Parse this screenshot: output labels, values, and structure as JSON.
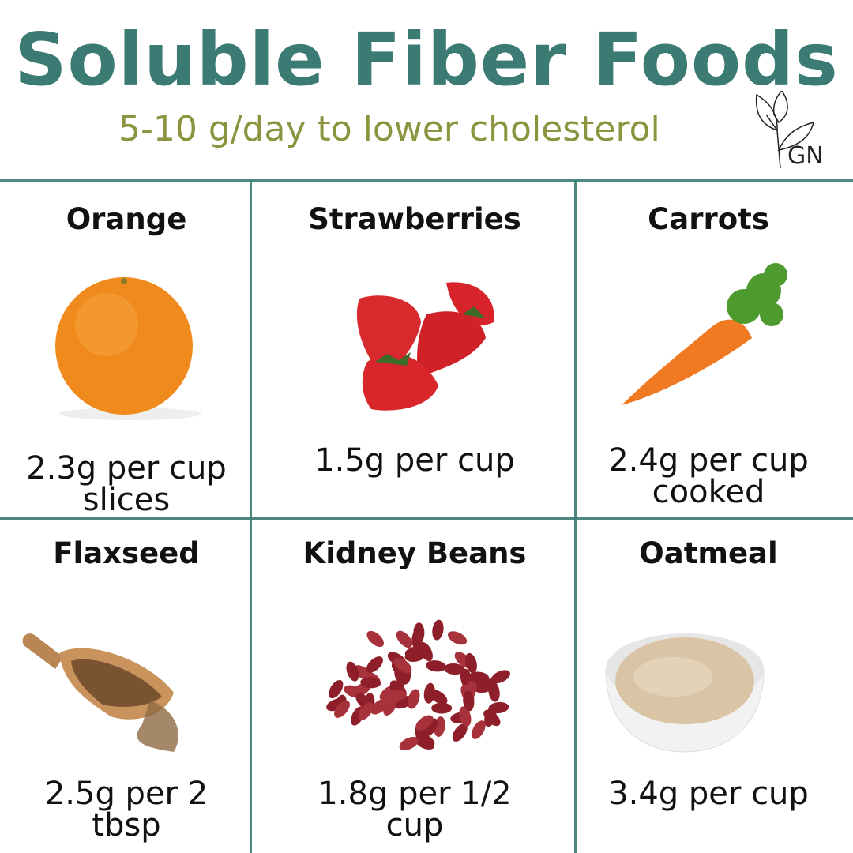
{
  "header": {
    "title": "Soluble Fiber Foods",
    "subtitle": "5-10 g/day to lower cholesterol",
    "logo_text": "GN"
  },
  "colors": {
    "title": "#3b7b74",
    "subtitle": "#8c9440",
    "grid": "#3b7b74"
  },
  "foods": [
    {
      "name": "Orange",
      "amount": "2.3g per cup slices",
      "icon": "orange-image"
    },
    {
      "name": "Strawberries",
      "amount": "1.5g per cup",
      "icon": "strawberries-image"
    },
    {
      "name": "Carrots",
      "amount": "2.4g per cup cooked",
      "icon": "carrot-image"
    },
    {
      "name": "Flaxseed",
      "amount": "2.5g per 2 tbsp",
      "icon": "flaxseed-scoop-image"
    },
    {
      "name": "Kidney Beans",
      "amount": "1.8g per 1/2 cup",
      "icon": "kidney-beans-image"
    },
    {
      "name": "Oatmeal",
      "amount": "3.4g per cup",
      "icon": "oatmeal-bowl-image"
    }
  ]
}
